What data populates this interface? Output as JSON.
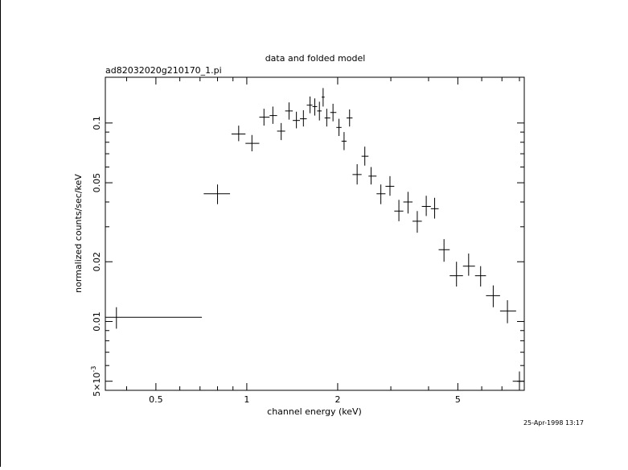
{
  "chart_data": {
    "type": "scatter",
    "title": "data and folded model",
    "subtitle": "ad82032020g210170_1.pi",
    "xlabel": "channel energy (keV)",
    "ylabel": "normalized counts/sec/keV",
    "timestamp": "25-Apr-1998 13:17",
    "x_scale": "log",
    "y_scale": "log",
    "xlim": [
      0.34,
      8.3
    ],
    "ylim": [
      0.0045,
      0.17
    ],
    "grid": false,
    "legend": "none",
    "x_ticks": [
      {
        "value": 0.5,
        "label": "0.5"
      },
      {
        "value": 1,
        "label": "1"
      },
      {
        "value": 2,
        "label": "2"
      },
      {
        "value": 5,
        "label": "5"
      }
    ],
    "y_ticks": [
      {
        "value": 0.1,
        "label": "0.1"
      },
      {
        "value": 0.05,
        "label": "0.05"
      },
      {
        "value": 0.02,
        "label": "0.02"
      },
      {
        "value": 0.01,
        "label": "0.01"
      },
      {
        "value": 0.005,
        "label": "5×10",
        "exponent": "-3"
      }
    ],
    "points": [
      {
        "x": 0.37,
        "xlo": 0.34,
        "xhi": 0.71,
        "y": 0.0105,
        "ylo": 0.0092,
        "yhi": 0.0118
      },
      {
        "x": 0.8,
        "xlo": 0.72,
        "xhi": 0.88,
        "y": 0.044,
        "ylo": 0.039,
        "yhi": 0.049
      },
      {
        "x": 0.94,
        "xlo": 0.89,
        "xhi": 0.99,
        "y": 0.088,
        "ylo": 0.081,
        "yhi": 0.097
      },
      {
        "x": 1.04,
        "xlo": 0.99,
        "xhi": 1.1,
        "y": 0.079,
        "ylo": 0.072,
        "yhi": 0.087
      },
      {
        "x": 1.14,
        "xlo": 1.1,
        "xhi": 1.19,
        "y": 0.107,
        "ylo": 0.097,
        "yhi": 0.118
      },
      {
        "x": 1.22,
        "xlo": 1.19,
        "xhi": 1.26,
        "y": 0.109,
        "ylo": 0.099,
        "yhi": 0.121
      },
      {
        "x": 1.3,
        "xlo": 1.26,
        "xhi": 1.34,
        "y": 0.091,
        "ylo": 0.082,
        "yhi": 0.1
      },
      {
        "x": 1.38,
        "xlo": 1.34,
        "xhi": 1.42,
        "y": 0.115,
        "ylo": 0.104,
        "yhi": 0.127
      },
      {
        "x": 1.46,
        "xlo": 1.42,
        "xhi": 1.5,
        "y": 0.103,
        "ylo": 0.094,
        "yhi": 0.114
      },
      {
        "x": 1.54,
        "xlo": 1.5,
        "xhi": 1.58,
        "y": 0.105,
        "ylo": 0.096,
        "yhi": 0.116
      },
      {
        "x": 1.62,
        "xlo": 1.58,
        "xhi": 1.65,
        "y": 0.123,
        "ylo": 0.112,
        "yhi": 0.136
      },
      {
        "x": 1.68,
        "xlo": 1.65,
        "xhi": 1.71,
        "y": 0.121,
        "ylo": 0.109,
        "yhi": 0.133
      },
      {
        "x": 1.74,
        "xlo": 1.71,
        "xhi": 1.77,
        "y": 0.115,
        "ylo": 0.103,
        "yhi": 0.128
      },
      {
        "x": 1.79,
        "xlo": 1.77,
        "xhi": 1.81,
        "y": 0.135,
        "ylo": 0.121,
        "yhi": 0.15
      },
      {
        "x": 1.84,
        "xlo": 1.81,
        "xhi": 1.89,
        "y": 0.106,
        "ylo": 0.096,
        "yhi": 0.118
      },
      {
        "x": 1.93,
        "xlo": 1.89,
        "xhi": 1.98,
        "y": 0.113,
        "ylo": 0.102,
        "yhi": 0.125
      },
      {
        "x": 2.02,
        "xlo": 1.98,
        "xhi": 2.06,
        "y": 0.095,
        "ylo": 0.086,
        "yhi": 0.105
      },
      {
        "x": 2.1,
        "xlo": 2.06,
        "xhi": 2.14,
        "y": 0.081,
        "ylo": 0.073,
        "yhi": 0.09
      },
      {
        "x": 2.19,
        "xlo": 2.14,
        "xhi": 2.24,
        "y": 0.106,
        "ylo": 0.096,
        "yhi": 0.117
      },
      {
        "x": 2.32,
        "xlo": 2.24,
        "xhi": 2.4,
        "y": 0.055,
        "ylo": 0.049,
        "yhi": 0.062
      },
      {
        "x": 2.46,
        "xlo": 2.4,
        "xhi": 2.53,
        "y": 0.068,
        "ylo": 0.061,
        "yhi": 0.076
      },
      {
        "x": 2.58,
        "xlo": 2.53,
        "xhi": 2.69,
        "y": 0.054,
        "ylo": 0.049,
        "yhi": 0.06
      },
      {
        "x": 2.78,
        "xlo": 2.69,
        "xhi": 2.88,
        "y": 0.044,
        "ylo": 0.039,
        "yhi": 0.049
      },
      {
        "x": 2.98,
        "xlo": 2.88,
        "xhi": 3.08,
        "y": 0.048,
        "ylo": 0.043,
        "yhi": 0.054
      },
      {
        "x": 3.19,
        "xlo": 3.08,
        "xhi": 3.3,
        "y": 0.036,
        "ylo": 0.032,
        "yhi": 0.041
      },
      {
        "x": 3.42,
        "xlo": 3.3,
        "xhi": 3.54,
        "y": 0.04,
        "ylo": 0.035,
        "yhi": 0.045
      },
      {
        "x": 3.67,
        "xlo": 3.54,
        "xhi": 3.8,
        "y": 0.032,
        "ylo": 0.028,
        "yhi": 0.036
      },
      {
        "x": 3.93,
        "xlo": 3.8,
        "xhi": 4.07,
        "y": 0.038,
        "ylo": 0.034,
        "yhi": 0.043
      },
      {
        "x": 4.19,
        "xlo": 4.07,
        "xhi": 4.32,
        "y": 0.037,
        "ylo": 0.033,
        "yhi": 0.042
      },
      {
        "x": 4.5,
        "xlo": 4.32,
        "xhi": 4.7,
        "y": 0.023,
        "ylo": 0.02,
        "yhi": 0.026
      },
      {
        "x": 4.95,
        "xlo": 4.7,
        "xhi": 5.2,
        "y": 0.017,
        "ylo": 0.015,
        "yhi": 0.02
      },
      {
        "x": 5.43,
        "xlo": 5.2,
        "xhi": 5.7,
        "y": 0.019,
        "ylo": 0.017,
        "yhi": 0.022
      },
      {
        "x": 5.95,
        "xlo": 5.7,
        "xhi": 6.2,
        "y": 0.017,
        "ylo": 0.015,
        "yhi": 0.019
      },
      {
        "x": 6.55,
        "xlo": 6.2,
        "xhi": 6.9,
        "y": 0.0135,
        "ylo": 0.0118,
        "yhi": 0.0152
      },
      {
        "x": 7.3,
        "xlo": 6.9,
        "xhi": 7.8,
        "y": 0.0113,
        "ylo": 0.0098,
        "yhi": 0.0128
      },
      {
        "x": 8.0,
        "xlo": 7.6,
        "xhi": 8.3,
        "y": 0.005,
        "ylo": 0.0044,
        "yhi": 0.0056
      }
    ]
  }
}
